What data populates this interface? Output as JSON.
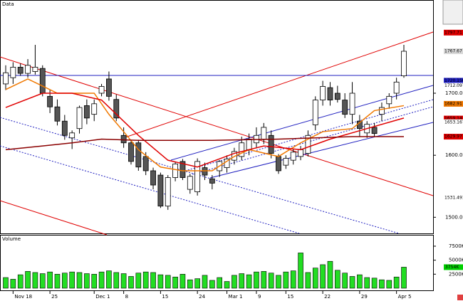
{
  "chart_data": {
    "type": "candlestick",
    "title": "Data",
    "volume_title": "Volume",
    "categories": [
      null,
      "Nov 18",
      null,
      null,
      null,
      null,
      "25",
      null,
      null,
      null,
      null,
      null,
      "Dec 1",
      null,
      null,
      null,
      "8",
      null,
      null,
      null,
      null,
      "15",
      null,
      null,
      null,
      null,
      "24",
      null,
      null,
      null,
      "Mar 1",
      null,
      null,
      null,
      "9",
      null,
      null,
      null,
      "15",
      null,
      null,
      null,
      null,
      "22",
      null,
      null,
      null,
      null,
      "29",
      null,
      null,
      null,
      null,
      "Apr 5",
      null
    ],
    "open": [
      1715,
      1725,
      1742,
      1732,
      1735,
      1740,
      1695,
      1678,
      1655,
      1628,
      1643,
      1680,
      1666,
      1700,
      1723,
      1690,
      1632,
      1620,
      1620,
      1598,
      1575,
      1568,
      1518,
      1564,
      1590,
      1545,
      1541,
      1580,
      1562,
      1575,
      1580,
      1592,
      1598,
      1609,
      1620,
      1626,
      1632,
      1598,
      1584,
      1592,
      1598,
      1603,
      1649,
      1689,
      1709,
      1700,
      1689,
      1666,
      1655,
      1636,
      1645,
      1666,
      1683,
      1700,
      1728
    ],
    "high": [
      1745,
      1750,
      1748,
      1755,
      1778,
      1745,
      1705,
      1690,
      1665,
      1640,
      1680,
      1690,
      1690,
      1715,
      1735,
      1698,
      1645,
      1625,
      1625,
      1605,
      1580,
      1572,
      1568,
      1590,
      1594,
      1570,
      1595,
      1588,
      1568,
      1592,
      1600,
      1612,
      1630,
      1635,
      1645,
      1652,
      1640,
      1602,
      1600,
      1610,
      1615,
      1640,
      1695,
      1720,
      1718,
      1712,
      1700,
      1718,
      1665,
      1655,
      1652,
      1685,
      1700,
      1725,
      1778
    ],
    "low": [
      1705,
      1715,
      1728,
      1725,
      1730,
      1695,
      1668,
      1648,
      1625,
      1610,
      1635,
      1650,
      1655,
      1695,
      1688,
      1655,
      1612,
      1585,
      1575,
      1568,
      1545,
      1515,
      1512,
      1558,
      1560,
      1538,
      1535,
      1560,
      1545,
      1565,
      1572,
      1585,
      1592,
      1600,
      1612,
      1618,
      1595,
      1570,
      1578,
      1585,
      1592,
      1598,
      1640,
      1680,
      1680,
      1685,
      1660,
      1650,
      1630,
      1628,
      1630,
      1655,
      1675,
      1690,
      1725
    ],
    "close": [
      1733,
      1742,
      1732,
      1745,
      1742,
      1700,
      1678,
      1655,
      1632,
      1636,
      1677,
      1660,
      1683,
      1711,
      1695,
      1660,
      1620,
      1590,
      1581,
      1575,
      1552,
      1518,
      1564,
      1586,
      1564,
      1566,
      1590,
      1568,
      1555,
      1590,
      1594,
      1606,
      1620,
      1626,
      1632,
      1645,
      1603,
      1575,
      1595,
      1605,
      1609,
      1632,
      1689,
      1711,
      1689,
      1690,
      1666,
      1700,
      1643,
      1650,
      1635,
      1677,
      1695,
      1718,
      1767.67
    ],
    "volume": [
      1900,
      1600,
      2400,
      3000,
      2800,
      2600,
      2900,
      2500,
      2700,
      2900,
      2800,
      2600,
      2500,
      2900,
      3100,
      2800,
      2600,
      2100,
      2700,
      2900,
      2800,
      2400,
      2300,
      2000,
      2500,
      1500,
      1700,
      2300,
      1400,
      1900,
      1200,
      2300,
      2600,
      2400,
      2900,
      3000,
      2700,
      2300,
      2900,
      3100,
      6300,
      2800,
      3600,
      4200,
      4800,
      3200,
      2700,
      2100,
      2400,
      1900,
      1800,
      1500,
      1400,
      2000,
      3754
    ],
    "overlays": [
      {
        "color": "#f07800",
        "x": [
          0,
          3,
          7,
          12,
          14,
          16,
          18,
          21,
          24,
          28,
          31,
          33,
          37,
          40,
          43,
          47,
          50,
          54
        ],
        "values": [
          1706,
          1723,
          1700,
          1700,
          1666,
          1638,
          1609,
          1581,
          1575,
          1575,
          1598,
          1609,
          1598,
          1620,
          1638,
          1643,
          1672,
          1680
        ]
      },
      {
        "color": "#e00000",
        "x": [
          0,
          5,
          9,
          13,
          18,
          22,
          26,
          31,
          35,
          40,
          44,
          49,
          54
        ],
        "values": [
          1677,
          1700,
          1700,
          1689,
          1632,
          1592,
          1581,
          1603,
          1615,
          1609,
          1626,
          1643,
          1660
        ]
      },
      {
        "color": "#8b0000",
        "x": [
          0,
          5,
          9,
          13,
          18,
          28,
          37,
          47,
          54
        ],
        "values": [
          1609,
          1615,
          1620,
          1626,
          1624,
          1624,
          1626,
          1630,
          1630
        ]
      }
    ],
    "ylim": [
      1474,
      1848
    ],
    "yticks": [
      {
        "value": 1500,
        "label": "1500.00"
      },
      {
        "value": 1600,
        "label": "1600.00"
      },
      {
        "value": 1700,
        "label": "1700.00"
      }
    ],
    "price_tags": [
      {
        "value": 1797.71,
        "label": "1797.71",
        "color": "#e00000"
      },
      {
        "value": 1767.67,
        "label": "1767.67",
        "color": "#d8d8d8"
      },
      {
        "value": 1720.15,
        "label": "1720.1500",
        "color": "#2020c0"
      },
      {
        "value": 1712.0976,
        "label": "1712.0976",
        "color": "#ffffff"
      },
      {
        "value": 1682.91,
        "label": "1682.91",
        "color": "#f07800"
      },
      {
        "value": 1659.14,
        "label": "1659.14",
        "color": "#e00000"
      },
      {
        "value": 1653.167,
        "label": "1653.1670",
        "color": "#ffffff"
      },
      {
        "value": 1629.97,
        "label": "1629.97",
        "color": "#e00000"
      },
      {
        "value": 1531.4913,
        "label": "1531.4913",
        "color": "#ffffff"
      }
    ],
    "vlim": [
      0,
      9400
    ],
    "vticks": [
      {
        "value": 2500,
        "label": "2500K"
      },
      {
        "value": 5000,
        "label": "5000K"
      },
      {
        "value": 7500,
        "label": "7500K"
      }
    ],
    "volume_tag": {
      "value": 3754,
      "label": "3754K",
      "color": "#00d000"
    }
  }
}
